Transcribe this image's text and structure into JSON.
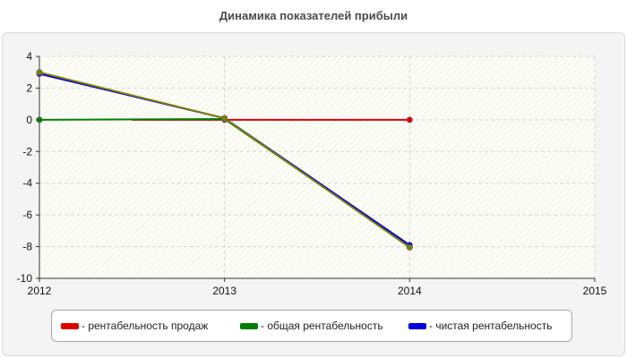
{
  "chart_data": {
    "type": "line",
    "title": "Динамика показателей прибыли",
    "xlabel": "",
    "ylabel": "",
    "x": [
      2012,
      2013,
      2014
    ],
    "xlim": [
      2012,
      2015
    ],
    "xticks": [
      "2012",
      "2013",
      "2014",
      "2015"
    ],
    "ylim": [
      -10,
      4
    ],
    "yticks": [
      "4",
      "2",
      "0",
      "-2",
      "-4",
      "-6",
      "-8",
      "-10"
    ],
    "grid": true,
    "legend_position": "bottom",
    "series": [
      {
        "name": "- рентабельность продаж",
        "color": "#e00000",
        "x": [
          2012.5,
          2013,
          2014
        ],
        "values": [
          0.0,
          0.0,
          0.0
        ]
      },
      {
        "name": "- общая рентабельность",
        "color": "#008000",
        "x": [
          2012,
          2013,
          2014
        ],
        "values": [
          0.0,
          0.05,
          -8.0
        ]
      },
      {
        "name": "- чистая рентабельность",
        "color": "#0000e0",
        "x": [
          2012,
          2013,
          2014
        ],
        "values": [
          2.9,
          0.1,
          -7.9
        ]
      },
      {
        "name": "",
        "color": "#808000",
        "x": [
          2012,
          2013,
          2014
        ],
        "values": [
          3.0,
          0.1,
          -8.05
        ]
      }
    ]
  }
}
